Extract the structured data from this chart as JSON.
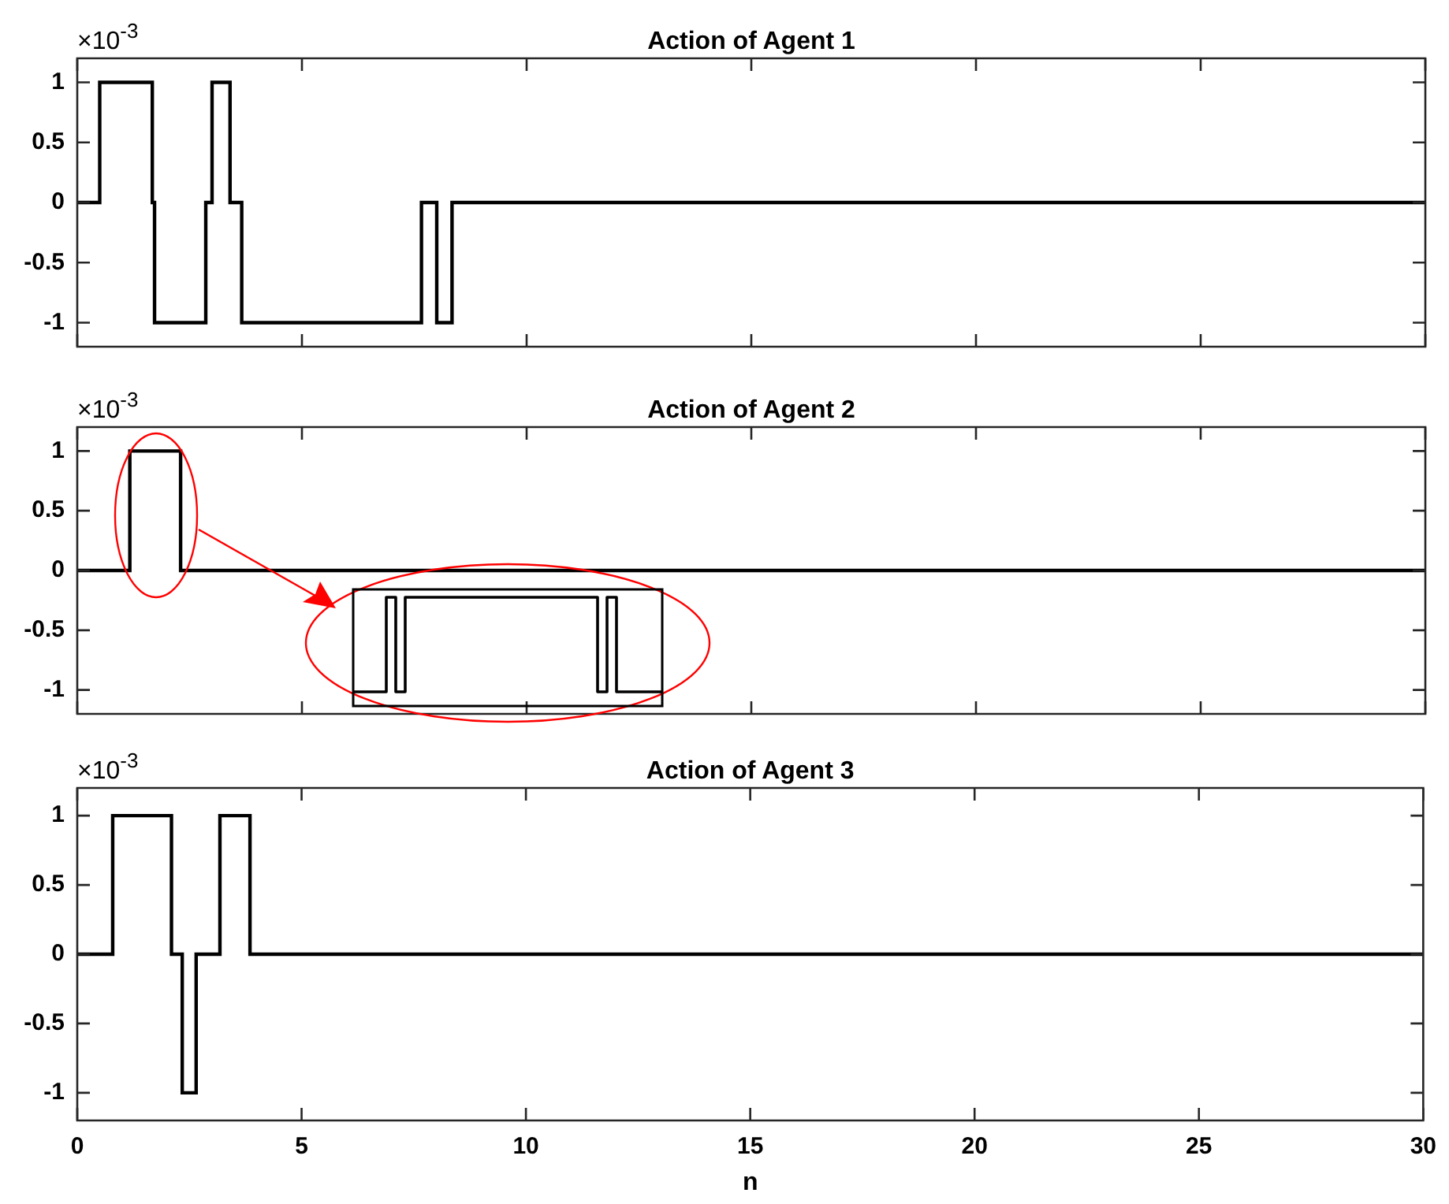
{
  "chart_data": [
    {
      "type": "step",
      "title": "Action of Agent 1",
      "x": [
        0,
        0.5,
        1.67,
        1.72,
        2.86,
        3.0,
        3.4,
        3.66,
        7.66,
        8.0,
        8.34,
        30
      ],
      "series": [
        {
          "color": "#000000",
          "values": [
            0,
            1,
            0,
            -1,
            0,
            1,
            0,
            -1,
            0,
            -1,
            0,
            0
          ]
        }
      ],
      "xlim": [
        0,
        30
      ],
      "xticks": [
        0,
        5,
        10,
        15,
        20,
        25,
        30
      ],
      "ylim": [
        -1.2,
        1.2
      ],
      "yticks": [
        -1,
        -0.5,
        0,
        0.5,
        1
      ],
      "tick_labels": "y",
      "annotations": [
        "×10$^{-3}$"
      ]
    },
    {
      "type": "step",
      "title": "Action of Agent 2",
      "x": [
        0,
        1.17,
        2.3,
        30
      ],
      "series": [
        {
          "color": "#000000",
          "values": [
            0,
            1,
            0,
            0
          ]
        }
      ],
      "xlim": [
        0,
        30
      ],
      "xticks": [
        0,
        5,
        10,
        15,
        20,
        25,
        30
      ],
      "ylim": [
        -1.2,
        1.2
      ],
      "yticks": [
        -1,
        -0.5,
        0,
        0.5,
        1
      ],
      "tick_labels": "y",
      "annotations": [
        "×10$^{-3}$"
      ]
    },
    {
      "type": "step",
      "title": "Action of Agent 3",
      "xlabel": "n",
      "x": [
        0,
        0.79,
        2.1,
        2.34,
        2.65,
        3.18,
        3.85,
        30
      ],
      "series": [
        {
          "color": "#000000",
          "values": [
            0,
            1,
            0,
            -1,
            0,
            1,
            0,
            0
          ]
        }
      ],
      "xlim": [
        0,
        30
      ],
      "xticks": [
        0,
        5,
        10,
        15,
        20,
        25,
        30
      ],
      "ylim": [
        -1.2,
        1.2
      ],
      "yticks": [
        -1,
        -0.5,
        0,
        0.5,
        1
      ],
      "annotations": [
        "×10$^{-3}$"
      ]
    }
  ]
}
